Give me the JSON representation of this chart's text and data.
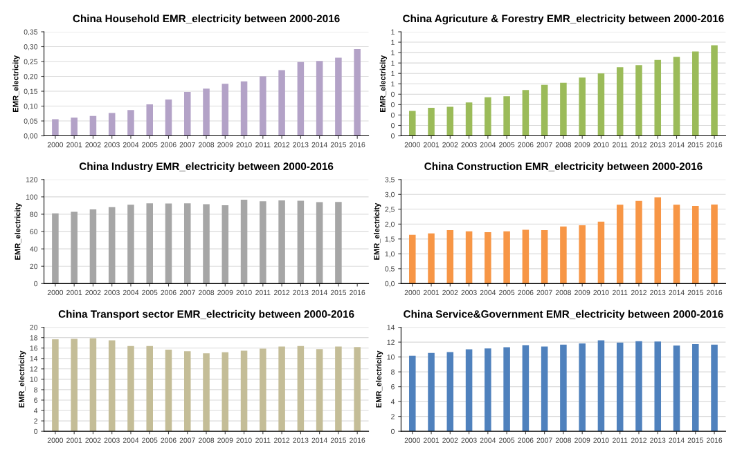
{
  "chart_data": [
    {
      "type": "bar",
      "title": "China Household EMR_electricity between 2000-2016",
      "ylabel": "EMR_electricity",
      "categories": [
        "2000",
        "2001",
        "2002",
        "2003",
        "2004",
        "2005",
        "2006",
        "2007",
        "2008",
        "2009",
        "2010",
        "2011",
        "2012",
        "2013",
        "2014",
        "2015",
        "2016"
      ],
      "color": "#b3a2c7",
      "values": [
        0.056,
        0.061,
        0.067,
        0.077,
        0.087,
        0.106,
        0.122,
        0.148,
        0.159,
        0.175,
        0.183,
        0.2,
        0.221,
        0.248,
        0.252,
        0.263,
        0.292
      ],
      "ylim": [
        0,
        0.35
      ],
      "yticks": [
        {
          "value": 0,
          "label": "0,00"
        },
        {
          "value": 0.05,
          "label": "0,05"
        },
        {
          "value": 0.1,
          "label": "0,10"
        },
        {
          "value": 0.15,
          "label": "0,15"
        },
        {
          "value": 0.2,
          "label": "0,20"
        },
        {
          "value": 0.25,
          "label": "0,25"
        },
        {
          "value": 0.3,
          "label": "0,30"
        },
        {
          "value": 0.35,
          "label": "0,35"
        }
      ],
      "grid": "y"
    },
    {
      "type": "bar",
      "title": "China Agricuture & Forestry EMR_electricity between 2000-2016",
      "ylabel": "EMR_electricity",
      "categories": [
        "2000",
        "2001",
        "2002",
        "2003",
        "2004",
        "2005",
        "2006",
        "2007",
        "2008",
        "2009",
        "2010",
        "2011",
        "2012",
        "2013",
        "2014",
        "2015",
        "2016"
      ],
      "color": "#9bbb59",
      "values": [
        0.24,
        0.27,
        0.28,
        0.32,
        0.37,
        0.38,
        0.44,
        0.49,
        0.51,
        0.56,
        0.6,
        0.66,
        0.68,
        0.73,
        0.76,
        0.81,
        0.87
      ],
      "ylim": [
        0,
        1
      ],
      "yticks": [
        {
          "value": 0,
          "label": "0"
        },
        {
          "value": 0.1,
          "label": "0"
        },
        {
          "value": 0.2,
          "label": "0"
        },
        {
          "value": 0.3,
          "label": "0"
        },
        {
          "value": 0.4,
          "label": "0"
        },
        {
          "value": 0.5,
          "label": "1"
        },
        {
          "value": 0.6,
          "label": "1"
        },
        {
          "value": 0.7,
          "label": "1"
        },
        {
          "value": 0.8,
          "label": "1"
        },
        {
          "value": 0.9,
          "label": "1"
        },
        {
          "value": 1,
          "label": "1"
        }
      ],
      "grid": "y"
    },
    {
      "type": "bar",
      "title": "China Industry EMR_electricity between 2000-2016",
      "ylabel": "EMR_electricity",
      "categories": [
        "2000",
        "2001",
        "2002",
        "2003",
        "2004",
        "2005",
        "2006",
        "2007",
        "2008",
        "2009",
        "2010",
        "2011",
        "2012",
        "2013",
        "2014",
        "2015",
        "2016"
      ],
      "color": "#a6a6a6",
      "values": [
        81,
        82.7,
        85.5,
        88.2,
        91,
        92.6,
        92.3,
        92.6,
        91.5,
        90.4,
        96.7,
        95,
        95.9,
        95.6,
        94,
        94.2,
        null
      ],
      "ylim": [
        0,
        120
      ],
      "yticks": [
        0,
        20,
        40,
        60,
        80,
        100,
        120
      ],
      "grid": "y"
    },
    {
      "type": "bar",
      "title": "China Construction EMR_electricity between 2000-2016",
      "ylabel": "EMR_electricity",
      "categories": [
        "2000",
        "2001",
        "2002",
        "2003",
        "2004",
        "2005",
        "2006",
        "2007",
        "2008",
        "2009",
        "2010",
        "2011",
        "2012",
        "2013",
        "2014",
        "2015",
        "2016"
      ],
      "color": "#f79646",
      "values": [
        1.64,
        1.69,
        1.8,
        1.76,
        1.73,
        1.76,
        1.81,
        1.8,
        1.92,
        1.96,
        2.08,
        2.65,
        2.78,
        2.9,
        2.65,
        2.61,
        2.66
      ],
      "ylim": [
        0,
        3.5
      ],
      "yticks": [
        {
          "value": 0,
          "label": "0,0"
        },
        {
          "value": 0.5,
          "label": "0,5"
        },
        {
          "value": 1,
          "label": "1,0"
        },
        {
          "value": 1.5,
          "label": "1,5"
        },
        {
          "value": 2,
          "label": "2,0"
        },
        {
          "value": 2.5,
          "label": "2,5"
        },
        {
          "value": 3,
          "label": "3,0"
        },
        {
          "value": 3.5,
          "label": "3,5"
        }
      ],
      "grid": "y"
    },
    {
      "type": "bar",
      "title": "China Transport sector EMR_electricity between 2000-2016",
      "ylabel": "EMR_electricity",
      "categories": [
        "2000",
        "2001",
        "2002",
        "2003",
        "2004",
        "2005",
        "2006",
        "2007",
        "2008",
        "2009",
        "2010",
        "2011",
        "2012",
        "2013",
        "2014",
        "2015",
        "2016"
      ],
      "color": "#c4bd97",
      "values": [
        17.7,
        17.8,
        17.9,
        17.5,
        16.4,
        16.4,
        15.7,
        15.4,
        15.0,
        15.2,
        15.5,
        15.9,
        16.3,
        16.4,
        15.8,
        16.3,
        16.2
      ],
      "ylim": [
        0,
        20
      ],
      "yticks": [
        0,
        2,
        4,
        6,
        8,
        10,
        12,
        14,
        16,
        18,
        20
      ],
      "grid": "y"
    },
    {
      "type": "bar",
      "title": "China Service&Government EMR_electricity between 2000-2016",
      "ylabel": "EMR_electricity",
      "categories": [
        "2000",
        "2001",
        "2002",
        "2003",
        "2004",
        "2005",
        "2006",
        "2007",
        "2008",
        "2009",
        "2010",
        "2011",
        "2012",
        "2013",
        "2014",
        "2015",
        "2016"
      ],
      "color": "#4f81bd",
      "values": [
        10.17,
        10.54,
        10.66,
        11.04,
        11.16,
        11.32,
        11.6,
        11.41,
        11.66,
        11.82,
        12.25,
        11.94,
        12.13,
        12.07,
        11.54,
        11.72,
        11.66
      ],
      "ylim": [
        0,
        14
      ],
      "yticks": [
        0,
        2,
        4,
        6,
        8,
        10,
        12,
        14
      ],
      "grid": "y"
    }
  ]
}
